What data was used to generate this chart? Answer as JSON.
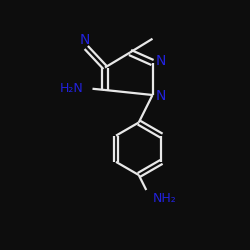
{
  "background_color": "#0d0d0d",
  "bond_color": "#e8e8e8",
  "atom_color": "#2222dd",
  "line_width": 1.6,
  "figsize": [
    2.5,
    2.5
  ],
  "dpi": 100,
  "xlim": [
    0,
    10
  ],
  "ylim": [
    0,
    10
  ]
}
